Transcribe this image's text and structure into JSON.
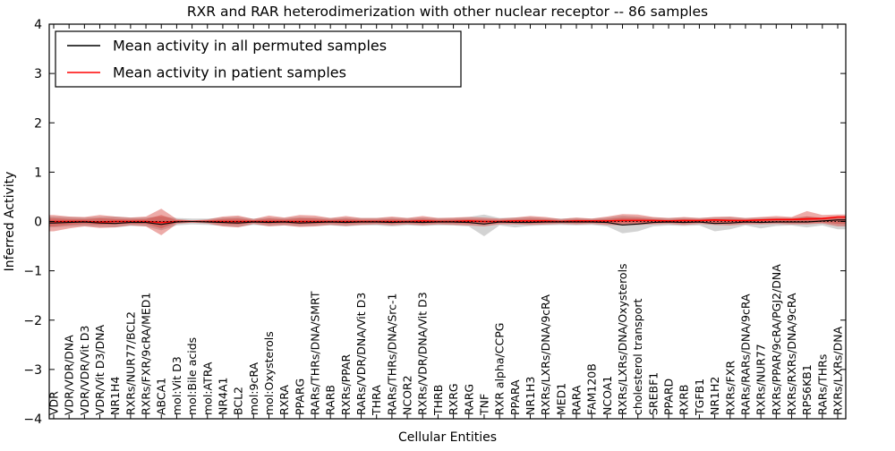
{
  "legend": {
    "entries": [
      {
        "label": "Mean activity in all permuted samples",
        "color": "#000000"
      },
      {
        "label": "Mean activity in patient samples",
        "color": "#ff0000"
      }
    ]
  },
  "chart_data": {
    "type": "line",
    "title": "RXR and RAR heterodimerization with other nuclear receptor -- 86 samples",
    "xlabel": "Cellular Entities",
    "ylabel": "Inferred Activity",
    "ylim": [
      -4,
      4
    ],
    "grid": false,
    "legend_position": "upper-left",
    "ytick_values": [
      4,
      3,
      2,
      1,
      0,
      -1,
      -2,
      -3,
      -4
    ],
    "ytick_labels": [
      "4",
      "3",
      "2",
      "1",
      "0",
      "−1",
      "−2",
      "−3",
      "−4"
    ],
    "zero_line": {
      "style": "dotted",
      "color": "#000000"
    },
    "categories": [
      "VDR",
      "VDR/VDR/DNA",
      "VDR/VDR/Vit D3",
      "VDR/Vit D3/DNA",
      "NR1H4",
      "RXRs/NUR77/BCL2",
      "RXRs/FXR/9cRA/MED1",
      "ABCA1",
      "mol:Vit D3",
      "mol:Bile acids",
      "mol:ATRA",
      "NR4A1",
      "BCL2",
      "mol:9cRA",
      "mol:Oxysterols",
      "RXRA",
      "PPARG",
      "RARs/THRs/DNA/SMRT",
      "RARB",
      "RXRs/PPAR",
      "RARs/VDR/DNA/Vit D3",
      "THRA",
      "RARs/THRs/DNA/Src-1",
      "NCOR2",
      "RXRs/VDR/DNA/Vit D3",
      "THRB",
      "RXRG",
      "RARG",
      "TNF",
      "RXR alpha/CCPG",
      "PPARA",
      "NR1H3",
      "RXRs/LXRs/DNA/9cRA",
      "MED1",
      "RARA",
      "FAM120B",
      "NCOA1",
      "RXRs/LXRs/DNA/Oxysterols",
      "cholesterol transport",
      "SREBF1",
      "PPARD",
      "RXRB",
      "TGFB1",
      "NR1H2",
      "RXRs/FXR",
      "RARs/RARs/DNA/9cRA",
      "RXRs/NUR77",
      "RXRs/PPAR/9cRA/PGJ2/DNA",
      "RXRs/RXRs/DNA/9cRA",
      "RPS6KB1",
      "RARs/THRs",
      "RXRs/LXRs/DNA"
    ],
    "series": [
      {
        "name": "Mean activity in all permuted samples",
        "color": "#000000",
        "width": 1.1,
        "values": [
          -0.03,
          -0.02,
          -0.01,
          -0.03,
          -0.04,
          -0.02,
          -0.02,
          -0.06,
          -0.01,
          0.0,
          -0.01,
          -0.02,
          -0.03,
          -0.01,
          -0.02,
          -0.01,
          -0.03,
          -0.02,
          -0.01,
          -0.02,
          -0.01,
          -0.01,
          -0.02,
          -0.01,
          -0.02,
          -0.01,
          -0.01,
          -0.02,
          -0.05,
          -0.01,
          -0.02,
          -0.02,
          -0.01,
          -0.01,
          -0.01,
          -0.01,
          -0.02,
          -0.07,
          -0.05,
          -0.02,
          -0.01,
          -0.02,
          -0.01,
          -0.04,
          -0.03,
          -0.01,
          -0.02,
          -0.01,
          -0.01,
          -0.01,
          0.01,
          0.03
        ]
      },
      {
        "name": "Mean activity in patient samples",
        "color": "#ff0000",
        "width": 1.6,
        "values": [
          0.0,
          0.0,
          0.0,
          -0.01,
          0.0,
          0.0,
          0.0,
          -0.02,
          0.0,
          0.0,
          0.0,
          0.0,
          0.0,
          0.0,
          0.0,
          0.0,
          0.0,
          0.0,
          0.0,
          0.0,
          0.0,
          0.0,
          0.0,
          0.0,
          0.01,
          0.0,
          0.0,
          0.01,
          0.0,
          0.0,
          0.01,
          0.01,
          0.01,
          0.0,
          0.01,
          0.01,
          0.01,
          0.02,
          0.02,
          0.02,
          0.01,
          0.02,
          0.02,
          0.03,
          0.02,
          0.02,
          0.03,
          0.04,
          0.04,
          0.05,
          0.06,
          0.09
        ]
      }
    ],
    "bands": [
      {
        "name": "permuted-samples-range",
        "color": "#808080",
        "opacity": 0.35,
        "inner_scale": 1,
        "upper": [
          0.1,
          0.09,
          0.08,
          0.09,
          0.1,
          0.08,
          0.08,
          0.1,
          0.07,
          0.06,
          0.06,
          0.08,
          0.09,
          0.06,
          0.08,
          0.07,
          0.09,
          0.08,
          0.07,
          0.08,
          0.07,
          0.07,
          0.08,
          0.07,
          0.08,
          0.07,
          0.07,
          0.09,
          0.14,
          0.07,
          0.08,
          0.09,
          0.07,
          0.06,
          0.07,
          0.06,
          0.08,
          0.12,
          0.1,
          0.08,
          0.07,
          0.08,
          0.07,
          0.09,
          0.09,
          0.07,
          0.08,
          0.08,
          0.08,
          0.1,
          0.08,
          0.08
        ],
        "lower": [
          -0.12,
          -0.1,
          -0.09,
          -0.11,
          -0.12,
          -0.09,
          -0.1,
          -0.18,
          -0.08,
          -0.06,
          -0.07,
          -0.09,
          -0.11,
          -0.07,
          -0.09,
          -0.08,
          -0.1,
          -0.09,
          -0.08,
          -0.1,
          -0.08,
          -0.08,
          -0.1,
          -0.08,
          -0.09,
          -0.08,
          -0.08,
          -0.1,
          -0.3,
          -0.08,
          -0.12,
          -0.09,
          -0.08,
          -0.07,
          -0.08,
          -0.07,
          -0.1,
          -0.24,
          -0.2,
          -0.1,
          -0.08,
          -0.09,
          -0.08,
          -0.2,
          -0.16,
          -0.08,
          -0.14,
          -0.09,
          -0.08,
          -0.12,
          -0.08,
          -0.16
        ]
      },
      {
        "name": "patient-samples-range",
        "color": "#d4372f",
        "opacity": 0.42,
        "inner_scale": 0.5,
        "upper": [
          0.13,
          0.1,
          0.09,
          0.13,
          0.1,
          0.08,
          0.1,
          0.26,
          0.05,
          0.02,
          0.04,
          0.1,
          0.12,
          0.05,
          0.12,
          0.08,
          0.13,
          0.12,
          0.07,
          0.11,
          0.07,
          0.07,
          0.1,
          0.07,
          0.11,
          0.07,
          0.08,
          0.09,
          0.08,
          0.06,
          0.08,
          0.11,
          0.09,
          0.05,
          0.08,
          0.06,
          0.1,
          0.15,
          0.14,
          0.09,
          0.07,
          0.09,
          0.07,
          0.09,
          0.1,
          0.07,
          0.09,
          0.11,
          0.09,
          0.21,
          0.13,
          0.14
        ],
        "lower": [
          -0.2,
          -0.14,
          -0.1,
          -0.13,
          -0.12,
          -0.08,
          -0.1,
          -0.28,
          -0.05,
          -0.02,
          -0.04,
          -0.1,
          -0.12,
          -0.05,
          -0.1,
          -0.08,
          -0.11,
          -0.1,
          -0.07,
          -0.09,
          -0.07,
          -0.06,
          -0.08,
          -0.06,
          -0.08,
          -0.06,
          -0.07,
          -0.08,
          -0.1,
          -0.06,
          -0.06,
          -0.07,
          -0.06,
          -0.05,
          -0.06,
          -0.05,
          -0.07,
          -0.08,
          -0.07,
          -0.06,
          -0.05,
          -0.07,
          -0.05,
          -0.07,
          -0.08,
          -0.06,
          -0.06,
          -0.05,
          -0.06,
          -0.06,
          -0.04,
          -0.1
        ]
      }
    ]
  }
}
